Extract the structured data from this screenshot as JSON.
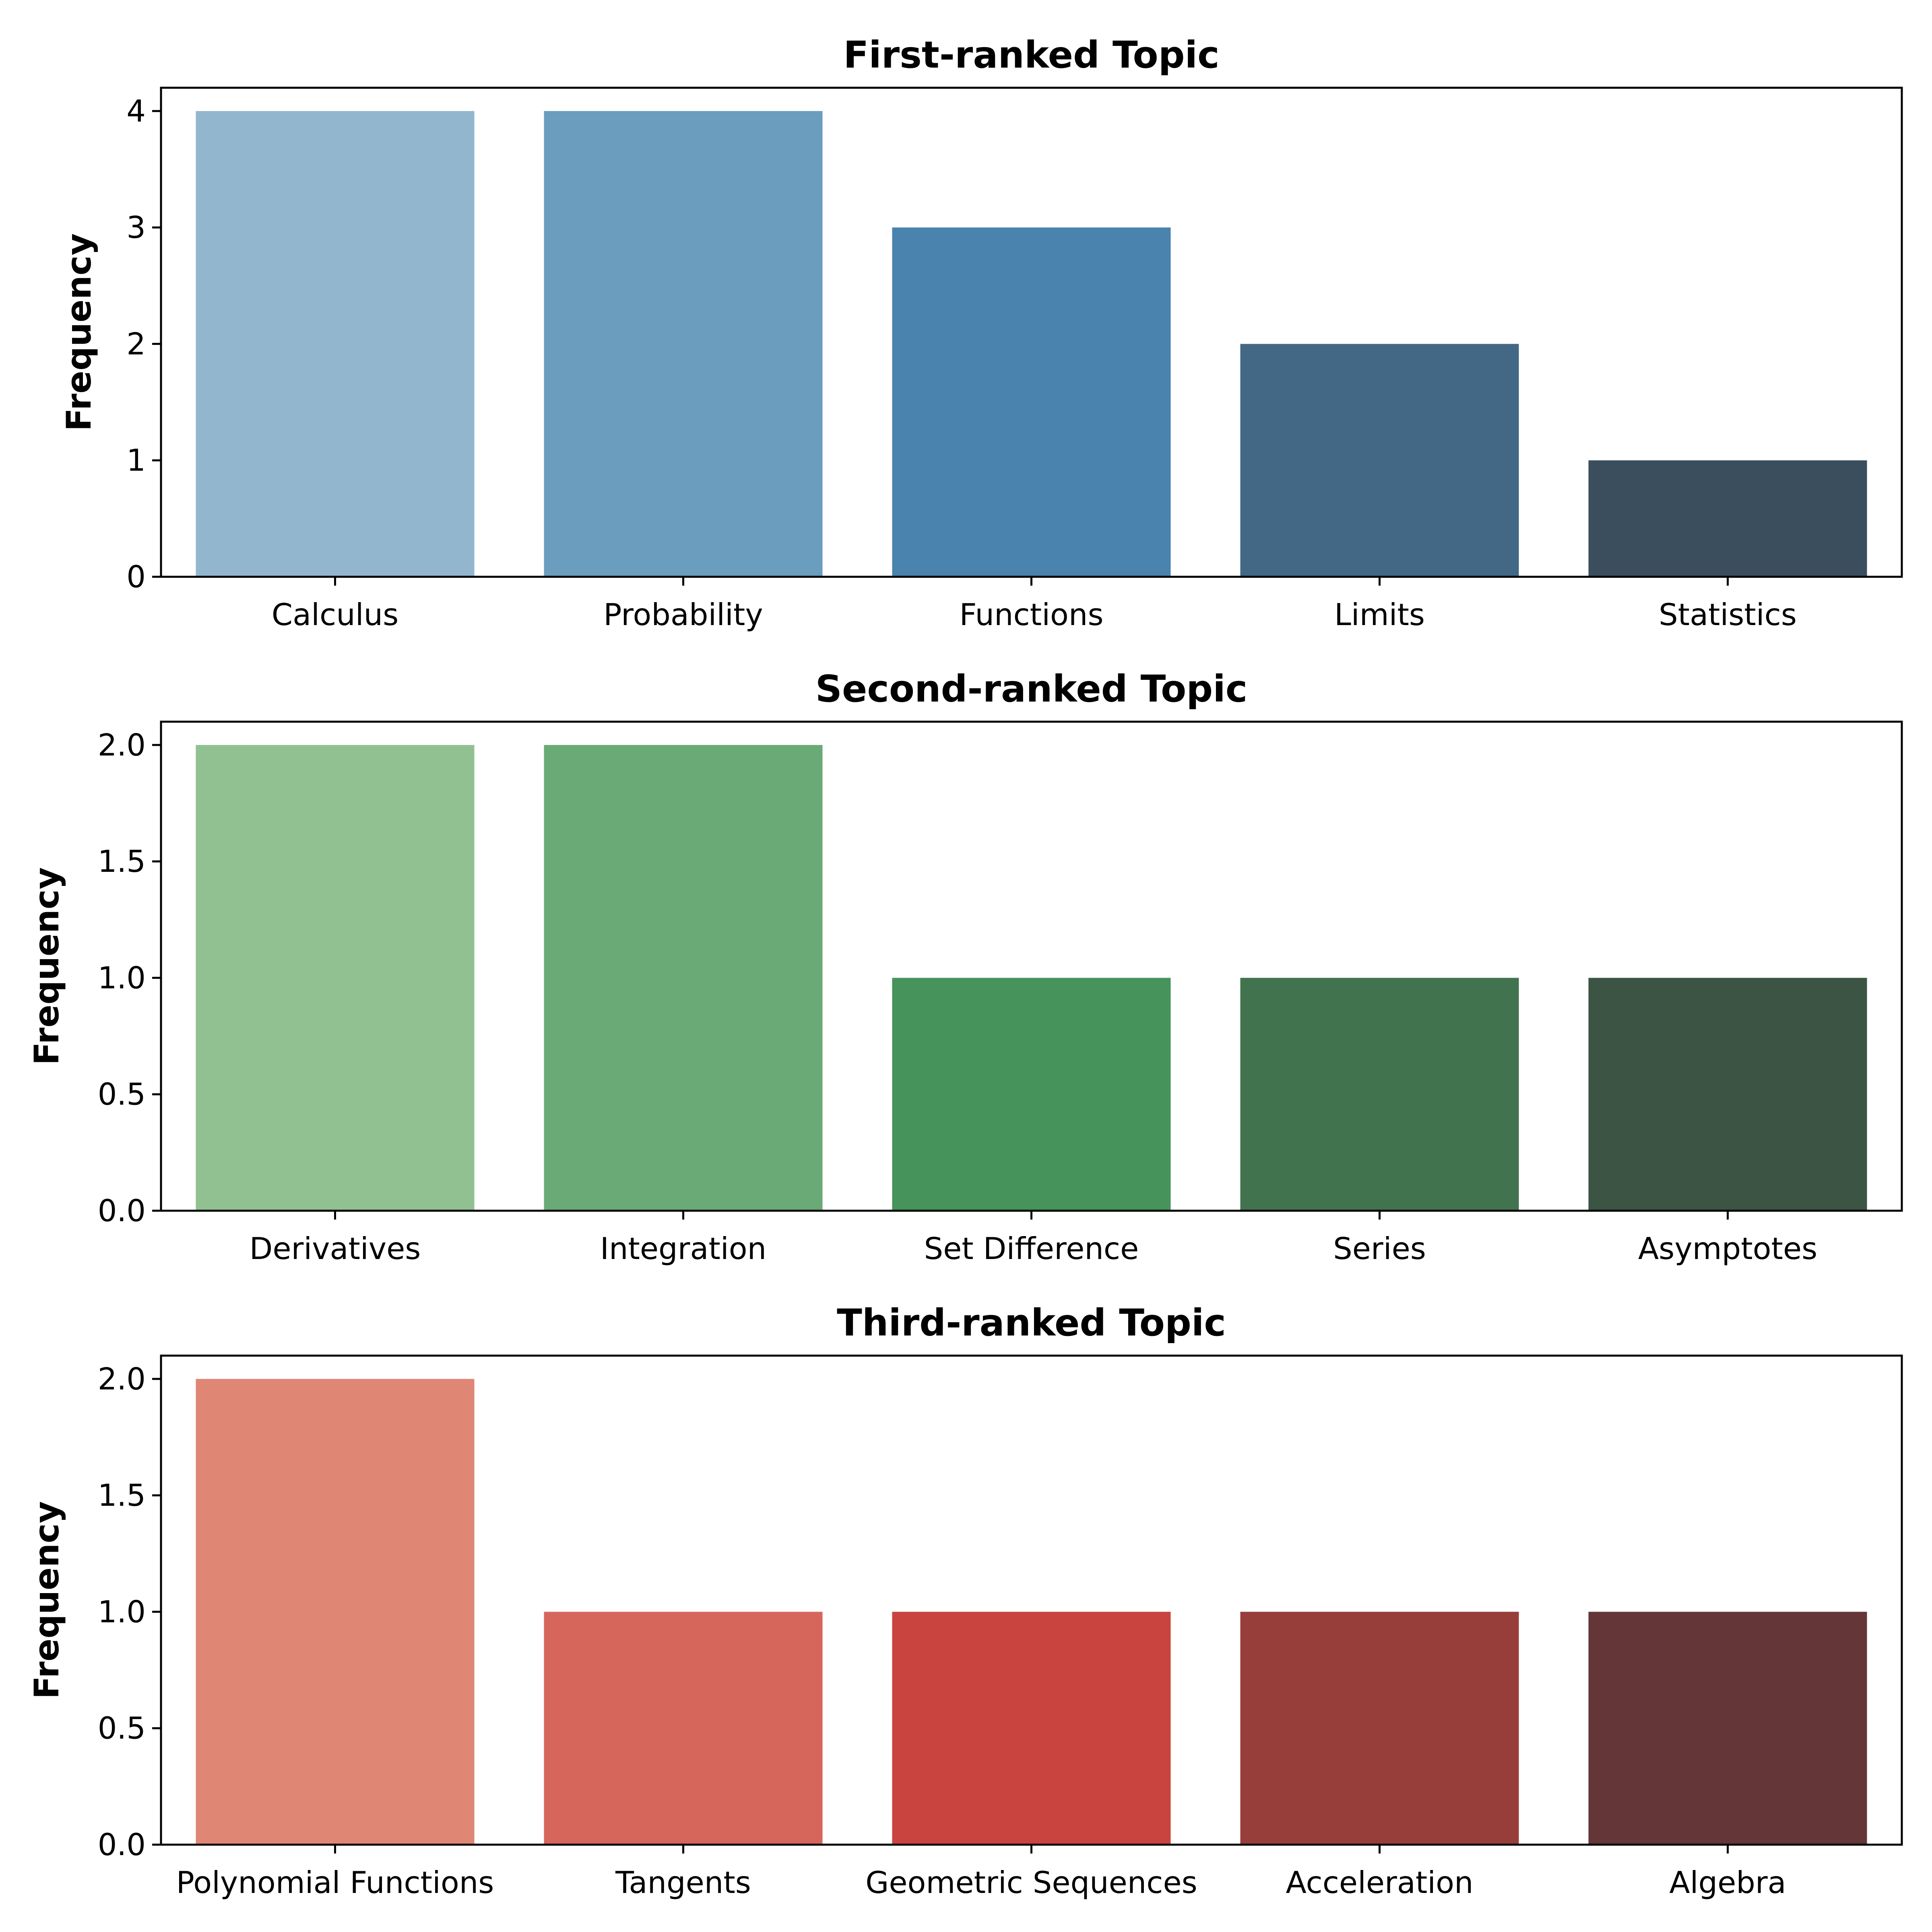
{
  "chart_data": [
    {
      "type": "bar",
      "title": "First-ranked Topic",
      "xlabel": "",
      "ylabel": "Frequency",
      "categories": [
        "Calculus",
        "Probability",
        "Functions",
        "Limits",
        "Statistics"
      ],
      "values": [
        4,
        4,
        3,
        2,
        1
      ],
      "colors": [
        "#93b6cf",
        "#6b9dbe",
        "#4983ae",
        "#426885",
        "#3a4e5e"
      ],
      "ylim": [
        0,
        4.2
      ],
      "yticks": [
        0,
        1,
        2,
        3,
        4
      ],
      "ytick_labels": [
        "0",
        "1",
        "2",
        "3",
        "4"
      ],
      "grid": false
    },
    {
      "type": "bar",
      "title": "Second-ranked Topic",
      "xlabel": "",
      "ylabel": "Frequency",
      "categories": [
        "Derivatives",
        "Integration",
        "Set Difference",
        "Series",
        "Asymptotes"
      ],
      "values": [
        2,
        2,
        1,
        1,
        1
      ],
      "colors": [
        "#91c190",
        "#6aaa76",
        "#46935b",
        "#41734f",
        "#3b5444"
      ],
      "ylim": [
        0,
        2.1
      ],
      "yticks": [
        0,
        0.5,
        1,
        1.5,
        2
      ],
      "ytick_labels": [
        "0.0",
        "0.5",
        "1.0",
        "1.5",
        "2.0"
      ],
      "grid": false
    },
    {
      "type": "bar",
      "title": "Third-ranked Topic",
      "xlabel": "",
      "ylabel": "Frequency",
      "categories": [
        "Polynomial Functions",
        "Tangents",
        "Geometric Sequences",
        "Acceleration",
        "Algebra"
      ],
      "values": [
        2,
        1,
        1,
        1,
        1
      ],
      "colors": [
        "#e08675",
        "#d6665c",
        "#c9443f",
        "#973e3b",
        "#643637"
      ],
      "ylim": [
        0,
        2.1
      ],
      "yticks": [
        0,
        0.5,
        1,
        1.5,
        2
      ],
      "ytick_labels": [
        "0.0",
        "0.5",
        "1.0",
        "1.5",
        "2.0"
      ],
      "grid": false
    }
  ]
}
